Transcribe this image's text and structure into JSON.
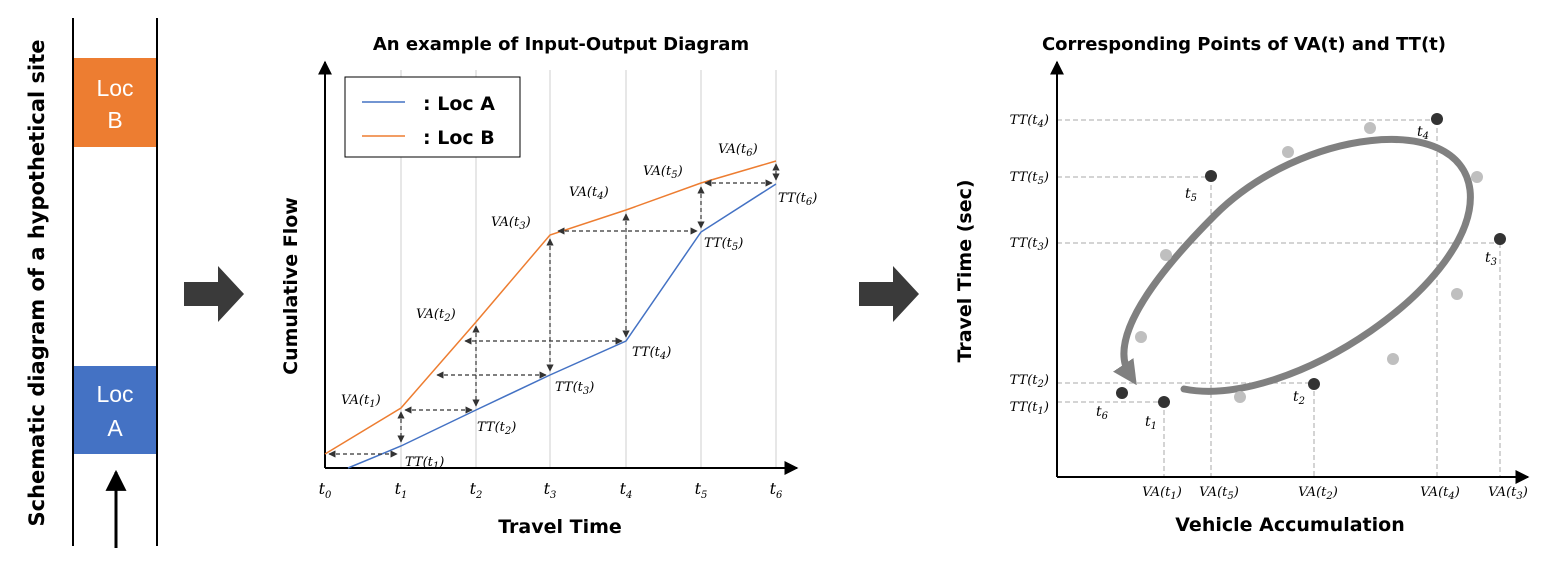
{
  "panel1": {
    "vertical_label": "Schematic diagram of a hypothetical site",
    "loc_b_label": [
      "Loc",
      "B"
    ],
    "loc_a_label": [
      "Loc",
      "A"
    ],
    "colors": {
      "loc_b_box": "#ED7D31",
      "loc_a_box": "#4472C4",
      "box_text": "#ffffff"
    }
  },
  "panel2": {
    "title": "An example of Input-Output  Diagram",
    "xlabel": "Travel Time",
    "ylabel": "Cumulative Flow",
    "legend": [
      {
        "text": ": Loc A",
        "color": "#4472C4"
      },
      {
        "text": ": Loc B",
        "color": "#ED7D31"
      }
    ],
    "ticks": [
      {
        "base": "t",
        "sub": "0"
      },
      {
        "base": "t",
        "sub": "1"
      },
      {
        "base": "t",
        "sub": "2"
      },
      {
        "base": "t",
        "sub": "3"
      },
      {
        "base": "t",
        "sub": "4"
      },
      {
        "base": "t",
        "sub": "5"
      },
      {
        "base": "t",
        "sub": "6"
      }
    ],
    "va_labels": [
      {
        "base": "VA(t",
        "sub": "1",
        "close": ")"
      },
      {
        "base": "VA(t",
        "sub": "2",
        "close": ")"
      },
      {
        "base": "VA(t",
        "sub": "3",
        "close": ")"
      },
      {
        "base": "VA(t",
        "sub": "4",
        "close": ")"
      },
      {
        "base": "VA(t",
        "sub": "5",
        "close": ")"
      },
      {
        "base": "VA(t",
        "sub": "6",
        "close": ")"
      }
    ],
    "tt_labels": [
      {
        "base": "TT(t",
        "sub": "1",
        "close": ")"
      },
      {
        "base": "TT(t",
        "sub": "2",
        "close": ")"
      },
      {
        "base": "TT(t",
        "sub": "3",
        "close": ")"
      },
      {
        "base": "TT(t",
        "sub": "4",
        "close": ")"
      },
      {
        "base": "TT(t",
        "sub": "5",
        "close": ")"
      },
      {
        "base": "TT(t",
        "sub": "6",
        "close": ")"
      }
    ]
  },
  "panel3": {
    "title": "Corresponding  Points of VA(t) and TT(t)",
    "xlabel": "Vehicle Accumulation",
    "ylabel": "Travel Time (sec)",
    "y_ticks": [
      {
        "base": "TT(t",
        "sub": "4",
        "close": ")"
      },
      {
        "base": "TT(t",
        "sub": "5",
        "close": ")"
      },
      {
        "base": "TT(t",
        "sub": "3",
        "close": ")"
      },
      {
        "base": "TT(t",
        "sub": "2",
        "close": ")"
      },
      {
        "base": "TT(t",
        "sub": "1",
        "close": ")"
      }
    ],
    "x_ticks": [
      {
        "base": "VA(t",
        "sub": "1",
        "close": ")"
      },
      {
        "base": "VA(t",
        "sub": "5",
        "close": ")"
      },
      {
        "base": "VA(t",
        "sub": "2",
        "close": ")"
      },
      {
        "base": "VA(t",
        "sub": "4",
        "close": ")"
      },
      {
        "base": "VA(t",
        "sub": "3",
        "close": ")"
      }
    ],
    "point_labels": [
      {
        "base": "t",
        "sub": "1"
      },
      {
        "base": "t",
        "sub": "2"
      },
      {
        "base": "t",
        "sub": "3"
      },
      {
        "base": "t",
        "sub": "4"
      },
      {
        "base": "t",
        "sub": "5"
      },
      {
        "base": "t",
        "sub": "6"
      }
    ],
    "colors": {
      "key_point": "#333333",
      "other_point": "#bfbfbf",
      "loop_arrow": "#808080"
    }
  }
}
